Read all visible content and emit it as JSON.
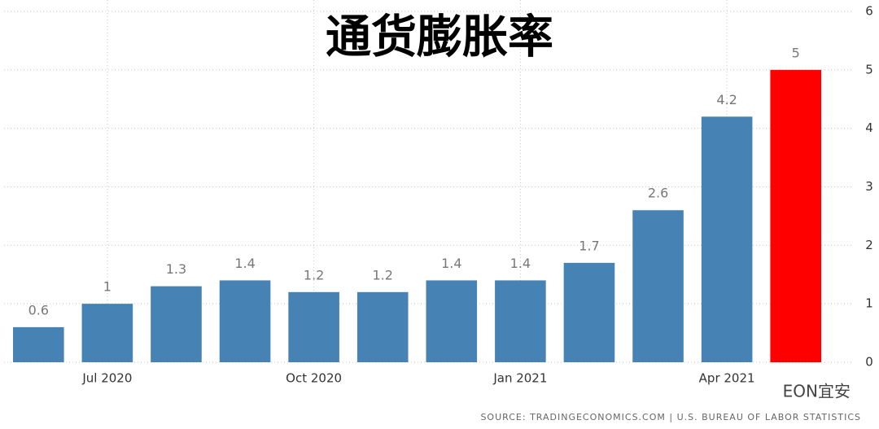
{
  "chart_data": {
    "type": "bar",
    "title": "通货膨胀率",
    "categories": [
      null,
      "Jul 2020",
      null,
      null,
      "Oct 2020",
      null,
      null,
      "Jan 2021",
      null,
      null,
      "Apr 2021",
      null
    ],
    "values": [
      0.6,
      1,
      1.3,
      1.4,
      1.2,
      1.2,
      1.4,
      1.4,
      1.7,
      2.6,
      4.2,
      5
    ],
    "colors": [
      "#4682b4",
      "#4682b4",
      "#4682b4",
      "#4682b4",
      "#4682b4",
      "#4682b4",
      "#4682b4",
      "#4682b4",
      "#4682b4",
      "#4682b4",
      "#4682b4",
      "#ff0000"
    ],
    "ylim": [
      0,
      6
    ],
    "yticks": [
      0,
      1,
      2,
      3,
      4,
      5,
      6
    ],
    "grid": true,
    "source": "SOURCE: TRADINGECONOMICS.COM | U.S. BUREAU OF LABOR STATISTICS",
    "watermark": "EON宜安"
  }
}
